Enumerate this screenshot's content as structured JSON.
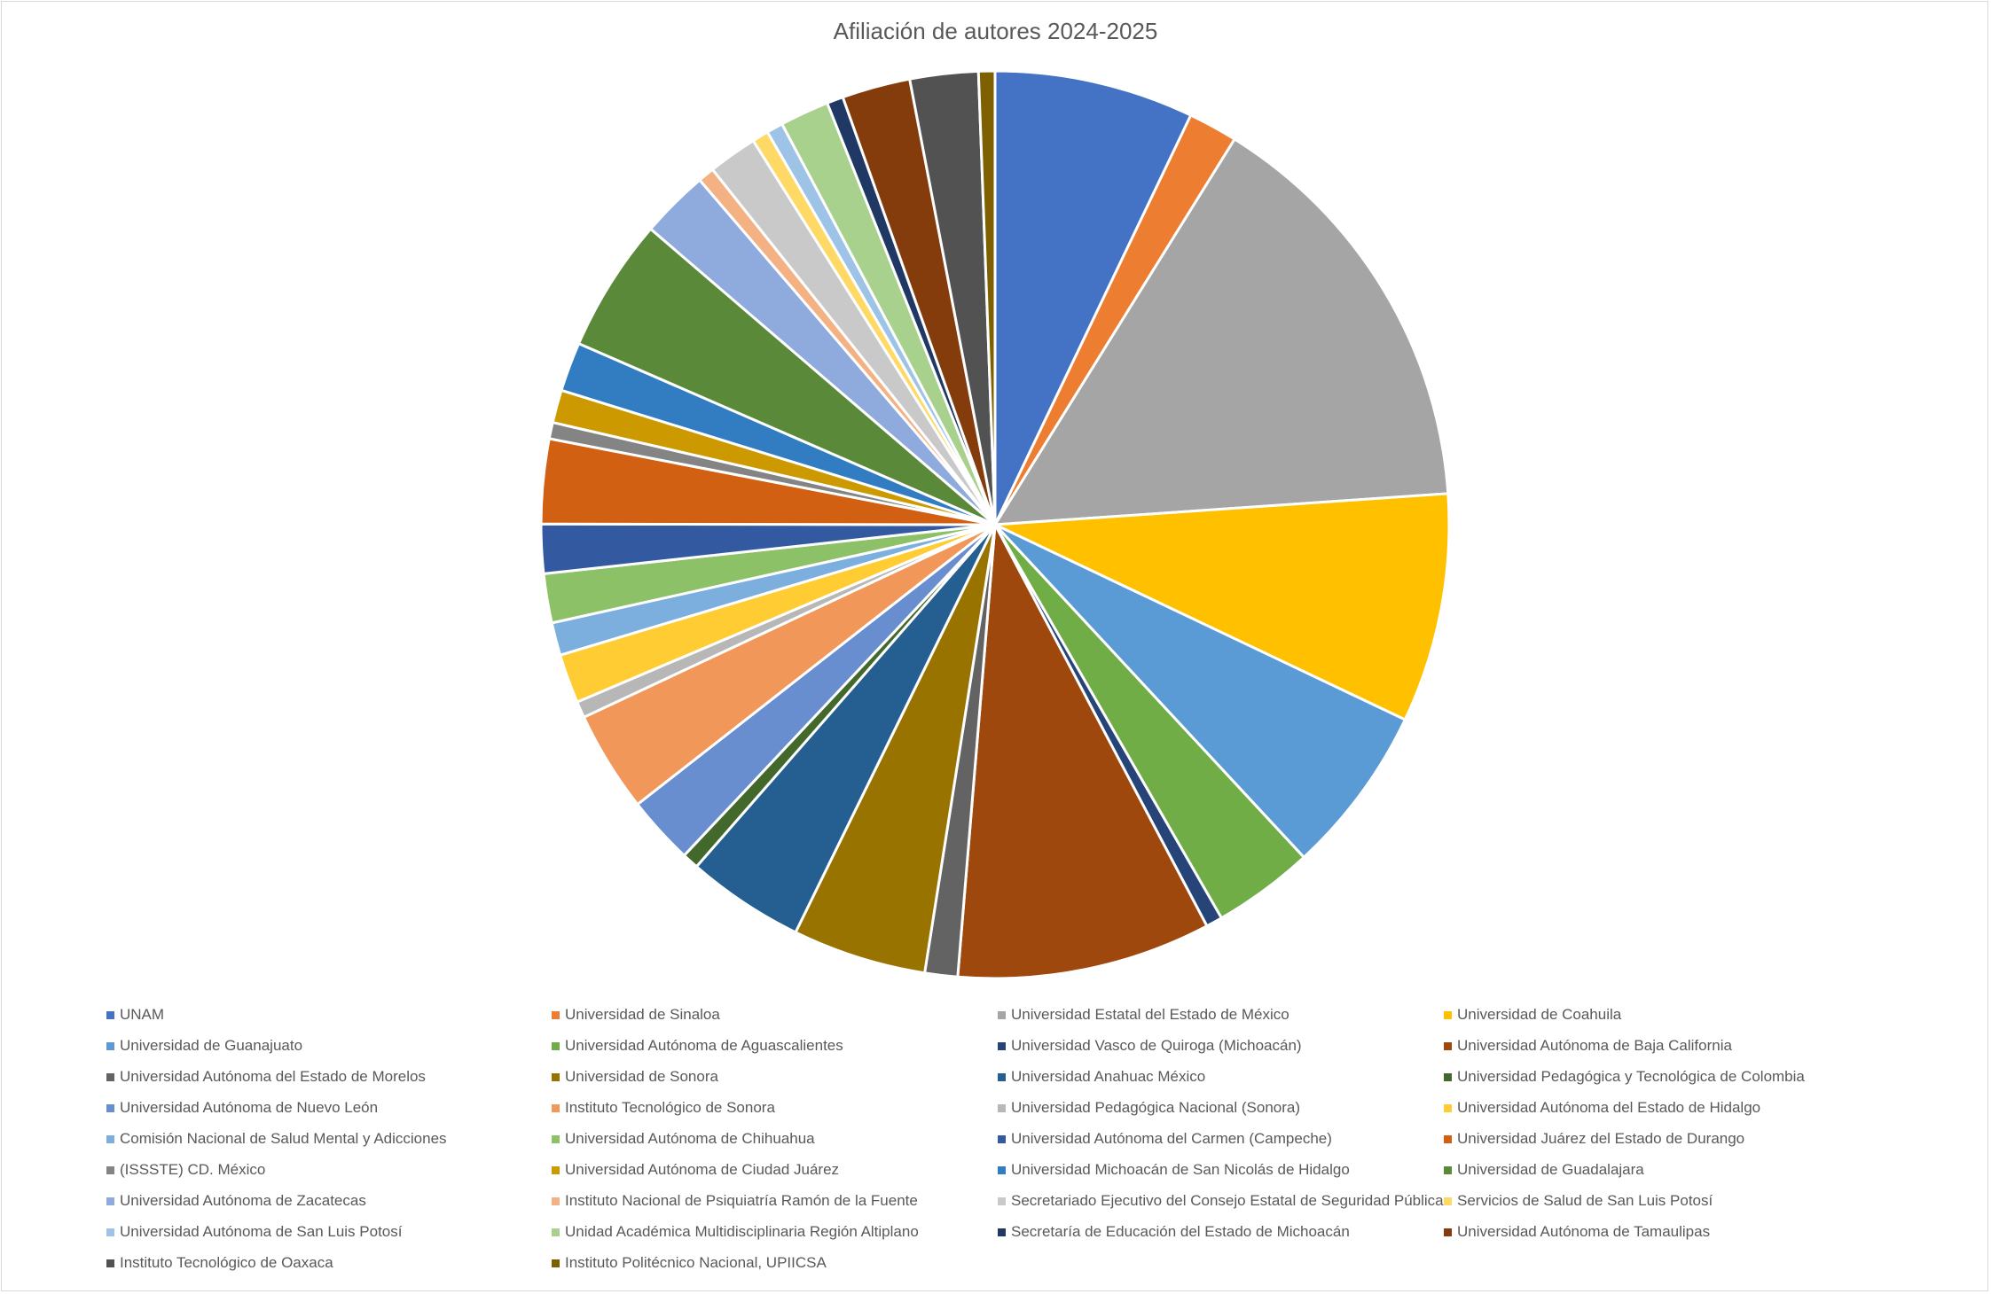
{
  "chart_data": {
    "type": "pie",
    "title": "Afiliación de autores 2024-2025",
    "legend_position": "bottom",
    "slices": [
      {
        "label": "UNAM",
        "value": 7.3,
        "color": "#4472c4"
      },
      {
        "label": "Universidad de Sinaloa",
        "value": 1.8,
        "color": "#ed7d31"
      },
      {
        "label": "Universidad Estatal del Estado de México",
        "value": 15.5,
        "color": "#a5a5a5"
      },
      {
        "label": "Universidad de Coahuila",
        "value": 8.4,
        "color": "#ffc000"
      },
      {
        "label": "Universidad de Guanajuato",
        "value": 6.2,
        "color": "#5b9bd5"
      },
      {
        "label": "Universidad Autónoma de Aguascalientes",
        "value": 3.7,
        "color": "#70ad47"
      },
      {
        "label": "Universidad Vasco de Quiroga (Michoacán)",
        "value": 0.6,
        "color": "#264478"
      },
      {
        "label": "Universidad Autónoma de Baja California",
        "value": 9.3,
        "color": "#9e480e"
      },
      {
        "label": "Universidad Autónoma del Estado de Morelos",
        "value": 1.2,
        "color": "#636363"
      },
      {
        "label": "Universidad de Sonora",
        "value": 4.9,
        "color": "#997300"
      },
      {
        "label": "Universidad Anahuac México",
        "value": 4.3,
        "color": "#255e91"
      },
      {
        "label": "Universidad Pedagógica y Tecnológica de Colombia",
        "value": 0.6,
        "color": "#43682b"
      },
      {
        "label": "Universidad Autónoma de Nuevo León",
        "value": 2.5,
        "color": "#698ed0"
      },
      {
        "label": "Instituto Tecnológico de Sonora",
        "value": 3.7,
        "color": "#f1975a"
      },
      {
        "label": "Universidad Pedagógica Nacional (Sonora)",
        "value": 0.6,
        "color": "#b7b7b7"
      },
      {
        "label": "Universidad Autónoma del Estado de Hidalgo",
        "value": 1.8,
        "color": "#ffcd33"
      },
      {
        "label": "Comisión Nacional de Salud Mental y Adicciones",
        "value": 1.2,
        "color": "#7cafdd"
      },
      {
        "label": "Universidad Autónoma de Chihuahua",
        "value": 1.8,
        "color": "#8cc168"
      },
      {
        "label": "Universidad Autónoma del Carmen (Campeche)",
        "value": 1.8,
        "color": "#335aa1"
      },
      {
        "label": "Universidad Juárez del Estado de Durango",
        "value": 3.1,
        "color": "#d26012"
      },
      {
        "label": "(ISSSTE) CD. México",
        "value": 0.6,
        "color": "#848484"
      },
      {
        "label": "Universidad Autónoma de Ciudad Juárez",
        "value": 1.2,
        "color": "#cc9a00"
      },
      {
        "label": "Universidad Michoacán de San Nicolás de Hidalgo",
        "value": 1.8,
        "color": "#327dc2"
      },
      {
        "label": "Universidad de Guadalajara",
        "value": 4.9,
        "color": "#5a8a39"
      },
      {
        "label": "Universidad Autónoma de Zacatecas",
        "value": 2.5,
        "color": "#8faadc"
      },
      {
        "label": "Instituto Nacional de Psiquiatría Ramón de la Fuente",
        "value": 0.6,
        "color": "#f4b183"
      },
      {
        "label": "Secretariado Ejecutivo del Consejo Estatal de Seguridad Pública",
        "value": 1.8,
        "color": "#c9c9c9"
      },
      {
        "label": "Servicios de Salud de San Luis Potosí",
        "value": 0.6,
        "color": "#ffd966"
      },
      {
        "label": "Universidad Autónoma de San Luis Potosí",
        "value": 0.6,
        "color": "#9dc3e6"
      },
      {
        "label": "Unidad Académica Multidisciplinaria Región Altiplano",
        "value": 1.8,
        "color": "#a9d18e"
      },
      {
        "label": "Secretaría de Educación del Estado de Michoacán",
        "value": 0.6,
        "color": "#203864"
      },
      {
        "label": "Universidad Autónoma de Tamaulipas",
        "value": 2.5,
        "color": "#843c0c"
      },
      {
        "label": "Instituto Tecnológico de Oaxaca",
        "value": 2.5,
        "color": "#525252"
      },
      {
        "label": "Instituto Politécnico Nacional, UPIICSA",
        "value": 0.6,
        "color": "#7f6000"
      }
    ]
  }
}
